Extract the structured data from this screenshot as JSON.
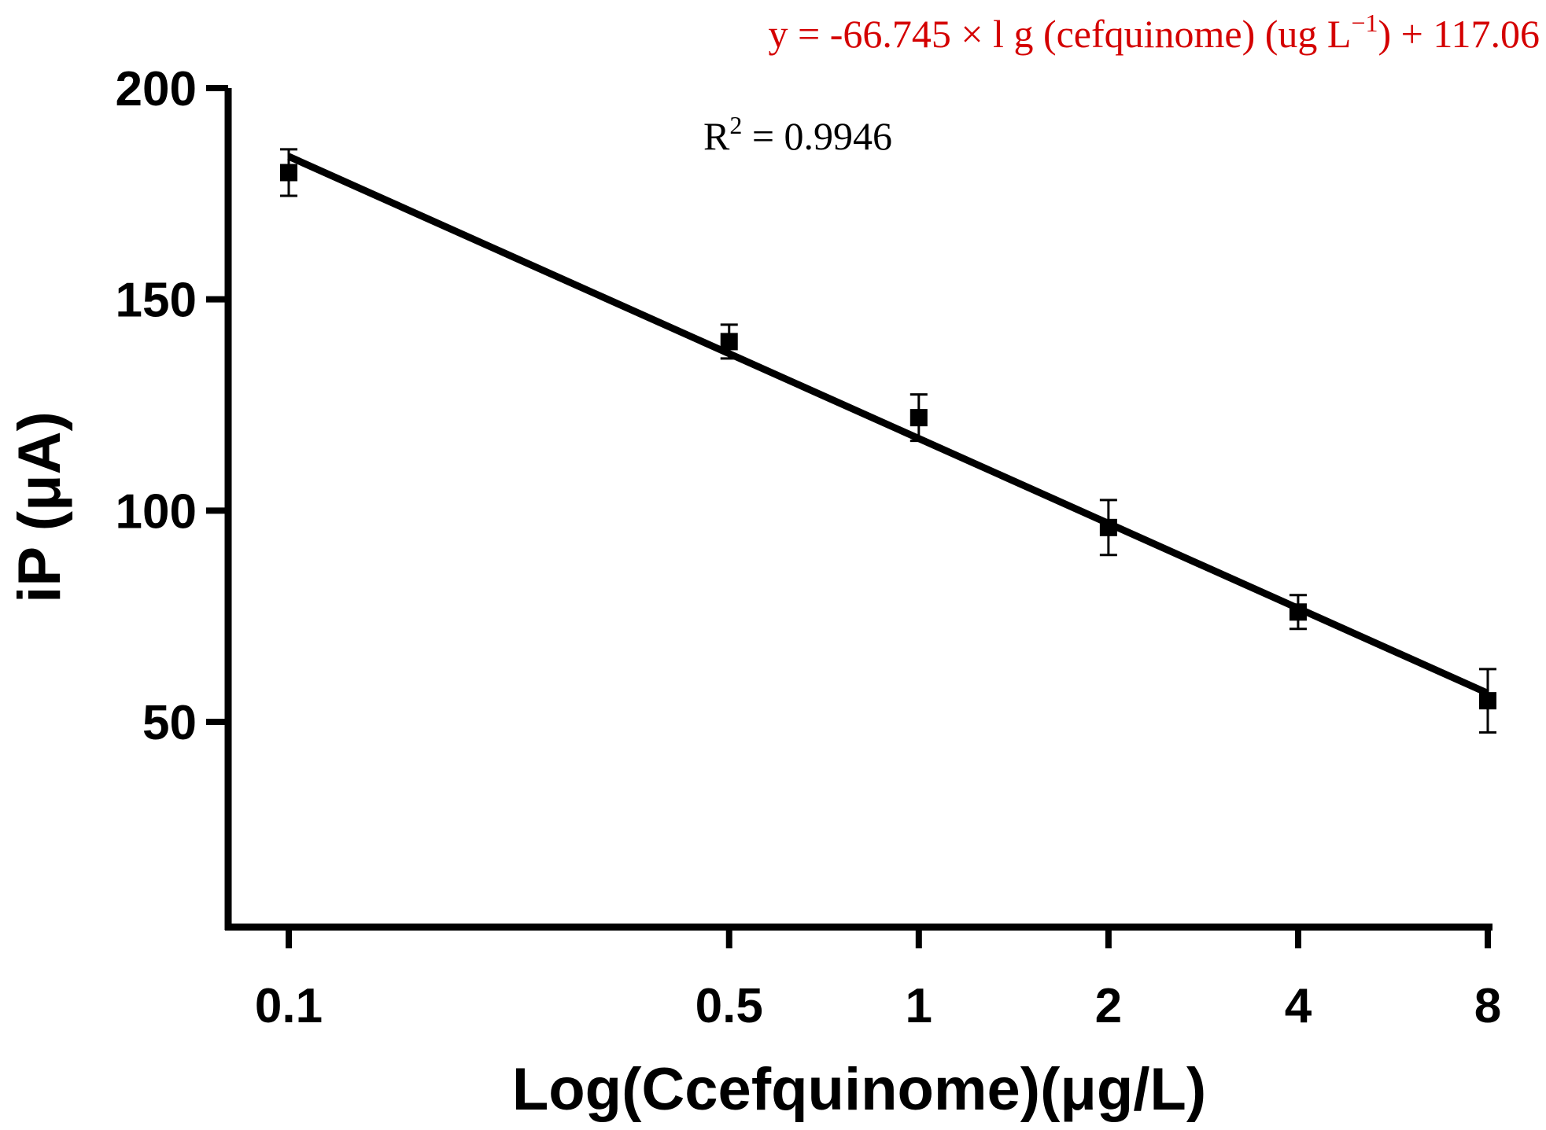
{
  "chart_data": {
    "type": "scatter",
    "title": "",
    "xlabel": "Log(Ccefquinome)(μg/L)",
    "ylabel": "iP (μA)",
    "xscale": "log",
    "x_ticks": [
      {
        "value": 0.1,
        "label": "0.1"
      },
      {
        "value": 0.5,
        "label": "0.5"
      },
      {
        "value": 1,
        "label": "1"
      },
      {
        "value": 2,
        "label": "2"
      },
      {
        "value": 4,
        "label": "4"
      },
      {
        "value": 8,
        "label": "8"
      }
    ],
    "y_ticks": [
      {
        "value": 50,
        "label": "50"
      },
      {
        "value": 100,
        "label": "100"
      },
      {
        "value": 150,
        "label": "150"
      },
      {
        "value": 200,
        "label": "200"
      }
    ],
    "ylim": [
      0,
      200
    ],
    "series": [
      {
        "name": "cefquinome",
        "color": "#000000",
        "x": [
          0.1,
          0.5,
          1,
          2,
          4,
          8
        ],
        "y": [
          180,
          140,
          122,
          96,
          76,
          55
        ],
        "error": [
          5.5,
          4,
          5.5,
          6.5,
          4,
          7.5
        ]
      }
    ],
    "fit": {
      "slope": -66.745,
      "intercept": 117.06,
      "x_range": [
        0.1,
        8
      ],
      "color": "#000000"
    },
    "equation": {
      "prefix": "y = -66.745 × l g (cefquinome) (ug L",
      "superscript": "−1",
      "suffix": ") + 117.06",
      "color": "#d40000"
    },
    "r_squared": {
      "prefix": "R",
      "superscript": "2",
      "suffix": " = 0.9946",
      "color": "#000000"
    }
  }
}
